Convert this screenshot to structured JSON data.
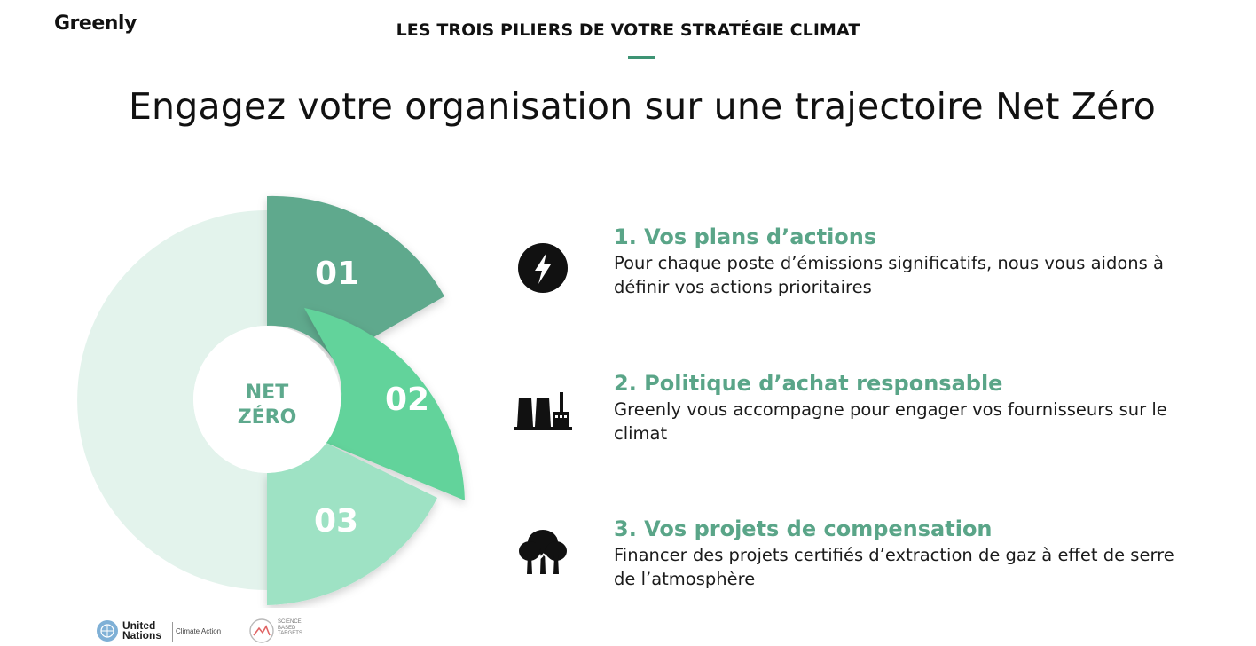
{
  "brand": {
    "name": "Greenly"
  },
  "header": {
    "eyebrow": "LES TROIS PILIERS DE VOTRE STRATÉGIE CLIMAT",
    "headline": "Engagez votre organisation sur une trajectoire Net Zéro"
  },
  "diagram": {
    "center_line1": "NET",
    "center_line2": "ZÉRO",
    "segments": [
      {
        "label": "01",
        "color": "#5ea98d"
      },
      {
        "label": "02",
        "color": "#62d39b"
      },
      {
        "label": "03",
        "color": "#9ee2c4"
      }
    ],
    "base_color": "#e3f3ec"
  },
  "pillars": [
    {
      "icon": "lightning-icon",
      "title": "1. Vos plans d’actions",
      "description": "Pour chaque poste d’émissions significatifs, nous vous aidons à définir vos actions prioritaires"
    },
    {
      "icon": "factory-icon",
      "title": "2. Politique d’achat responsable",
      "description": "Greenly vous accompagne pour engager vos fournisseurs sur le climat"
    },
    {
      "icon": "trees-icon",
      "title": "3. Vos projets de compensation",
      "description": "Financer des projets certifiés d’extraction de gaz à effet de serre de l’atmosphère"
    }
  ],
  "footer_logos": {
    "un_line1": "United",
    "un_line2": "Nations",
    "un_sub": "Climate Action",
    "sbt_line1": "SCIENCE",
    "sbt_line2": "BASED",
    "sbt_line3": "TARGETS"
  },
  "colors": {
    "accent": "#5aa588",
    "dark": "#111111"
  }
}
